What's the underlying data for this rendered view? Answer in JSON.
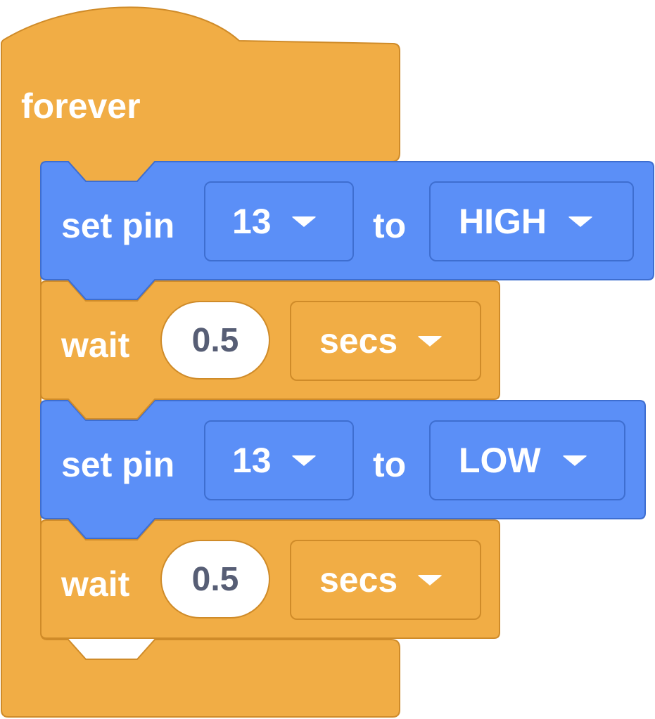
{
  "colors": {
    "control": "#F1AD45",
    "control_border": "#CF8B29",
    "pin_block": "#5B8FF7",
    "pin_block_border": "#3E6ED0",
    "number_text": "#575E75"
  },
  "forever_block": {
    "label": "forever"
  },
  "blocks": [
    {
      "type": "set-pin",
      "label": "set pin",
      "pin": "13",
      "to_label": "to",
      "state": "HIGH"
    },
    {
      "type": "wait",
      "label": "wait",
      "duration": "0.5",
      "unit": "secs"
    },
    {
      "type": "set-pin",
      "label": "set pin",
      "pin": "13",
      "to_label": "to",
      "state": "LOW"
    },
    {
      "type": "wait",
      "label": "wait",
      "duration": "0.5",
      "unit": "secs"
    }
  ],
  "icons": {
    "dropdown": "caret-down-icon"
  }
}
